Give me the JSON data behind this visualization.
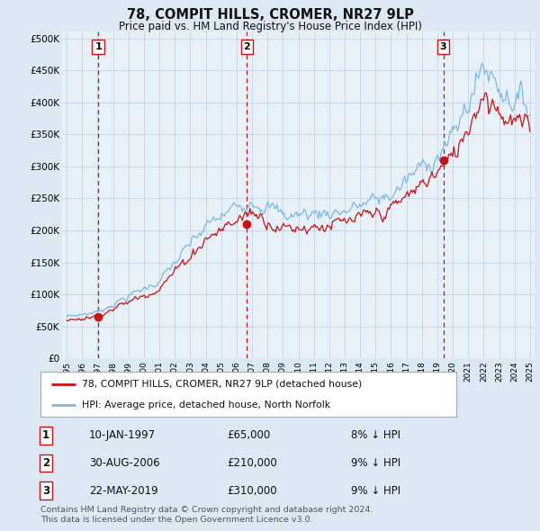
{
  "title": "78, COMPIT HILLS, CROMER, NR27 9LP",
  "subtitle": "Price paid vs. HM Land Registry's House Price Index (HPI)",
  "ylabel_ticks": [
    "£0",
    "£50K",
    "£100K",
    "£150K",
    "£200K",
    "£250K",
    "£300K",
    "£350K",
    "£400K",
    "£450K",
    "£500K"
  ],
  "ytick_values": [
    0,
    50000,
    100000,
    150000,
    200000,
    250000,
    300000,
    350000,
    400000,
    450000,
    500000
  ],
  "xlim_start": 1994.7,
  "xlim_end": 2025.3,
  "ylim_top": 510000,
  "bg_color": "#dce9f5",
  "plot_bg_color": "#e8f0f8",
  "grid_color": "#c8d8ea",
  "hpi_color": "#7ab8e8",
  "price_color": "#cc1111",
  "dashed_line_color": "#cc1111",
  "transactions": [
    {
      "label": "1",
      "date_decimal": 1997.04,
      "price": 65000
    },
    {
      "label": "2",
      "date_decimal": 2006.67,
      "price": 210000
    },
    {
      "label": "3",
      "date_decimal": 2019.39,
      "price": 310000
    }
  ],
  "transaction_dates": [
    "10-JAN-1997",
    "30-AUG-2006",
    "22-MAY-2019"
  ],
  "transaction_prices": [
    "£65,000",
    "£210,000",
    "£310,000"
  ],
  "transaction_hpi": [
    "8% ↓ HPI",
    "9% ↓ HPI",
    "9% ↓ HPI"
  ],
  "legend_line1": "78, COMPIT HILLS, CROMER, NR27 9LP (detached house)",
  "legend_line2": "HPI: Average price, detached house, North Norfolk",
  "footer1": "Contains HM Land Registry data © Crown copyright and database right 2024.",
  "footer2": "This data is licensed under the Open Government Licence v3.0."
}
